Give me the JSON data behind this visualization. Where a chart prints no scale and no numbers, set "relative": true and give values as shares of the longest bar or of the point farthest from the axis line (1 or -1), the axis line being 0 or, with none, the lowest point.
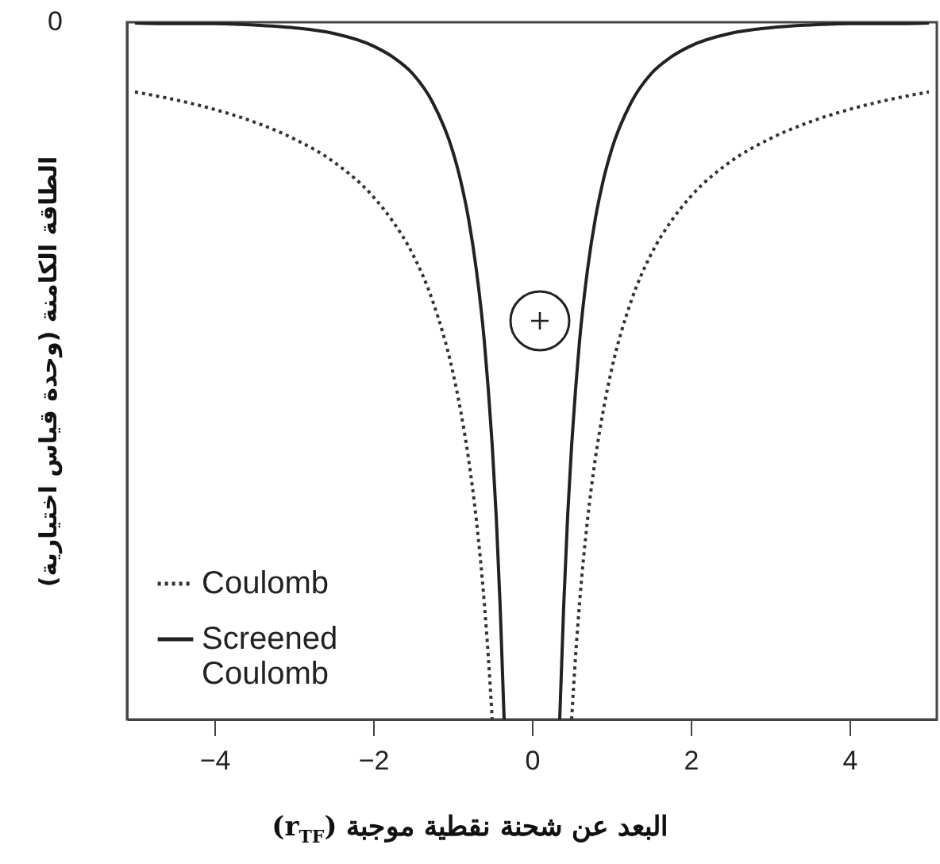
{
  "chart_data": {
    "type": "line",
    "relative": true,
    "xlabel": "البعد عن شحنة نقطية موجبة (r$_{TF}$)",
    "ylabel": "الطاقة الكامنة (وحدة قياس اختيارية)",
    "annotations": [
      "0"
    ],
    "xlim": [
      -5.1,
      5.1
    ],
    "xticks": [
      -4,
      -2,
      0,
      2,
      4
    ],
    "legend": "bottom left",
    "grid": false,
    "x": [
      -5,
      -4.5,
      -4,
      -3.5,
      -3,
      -2.5,
      -2,
      -1.75,
      -1.5,
      -1.25,
      -1,
      -0.9,
      -0.8,
      -0.7,
      -0.6,
      -0.55,
      -0.5,
      -0.45,
      -0.4,
      -0.35,
      0,
      0.35,
      0.4,
      0.45,
      0.5,
      0.55,
      0.6,
      0.7,
      0.8,
      0.9,
      1,
      1.25,
      1.5,
      1.75,
      2,
      2.5,
      3,
      3.5,
      4,
      4.5,
      5
    ],
    "series": [
      {
        "name": "Coulomb",
        "color": "#333333",
        "line_style": "dotted",
        "values": [
          -0.1,
          -0.111,
          -0.125,
          -0.143,
          -0.167,
          -0.2,
          -0.25,
          -0.286,
          -0.333,
          -0.4,
          -0.5,
          -0.556,
          -0.625,
          -0.714,
          -0.833,
          -0.909,
          -1,
          null,
          null,
          null,
          null,
          null,
          null,
          null,
          -1,
          -0.909,
          -0.833,
          -0.714,
          -0.625,
          -0.556,
          -0.5,
          -0.4,
          -0.333,
          -0.286,
          -0.25,
          -0.2,
          -0.167,
          -0.143,
          -0.125,
          -0.111,
          -0.1
        ]
      },
      {
        "name": "Screened Coulomb",
        "color": "#222222",
        "line_style": "solid",
        "values": [
          -0.001,
          -0.002,
          -0.002,
          -0.004,
          -0.008,
          -0.016,
          -0.034,
          -0.05,
          -0.074,
          -0.115,
          -0.184,
          -0.226,
          -0.281,
          -0.355,
          -0.457,
          -0.526,
          -0.607,
          -0.708,
          -0.838,
          -1,
          null,
          -1,
          -0.838,
          -0.708,
          -0.607,
          -0.526,
          -0.457,
          -0.355,
          -0.281,
          -0.226,
          -0.184,
          -0.115,
          -0.074,
          -0.05,
          -0.034,
          -0.016,
          -0.008,
          -0.004,
          -0.002,
          -0.002,
          -0.001
        ]
      }
    ]
  }
}
